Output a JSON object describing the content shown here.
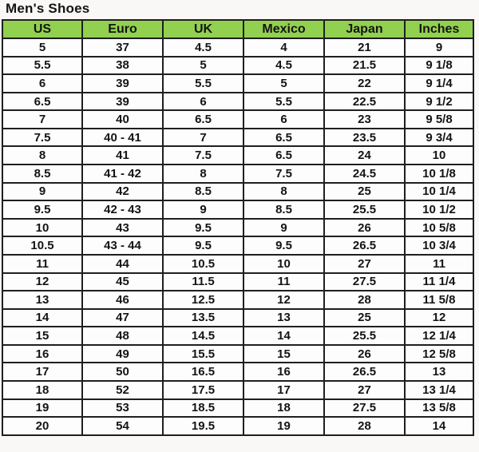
{
  "chart_data": {
    "type": "table",
    "title": "Men's Shoes",
    "columns": [
      "US",
      "Euro",
      "UK",
      "Mexico",
      "Japan",
      "Inches"
    ],
    "rows": [
      [
        "5",
        "37",
        "4.5",
        "4",
        "21",
        "9"
      ],
      [
        "5.5",
        "38",
        "5",
        "4.5",
        "21.5",
        "9 1/8"
      ],
      [
        "6",
        "39",
        "5.5",
        "5",
        "22",
        "9 1/4"
      ],
      [
        "6.5",
        "39",
        "6",
        "5.5",
        "22.5",
        "9 1/2"
      ],
      [
        "7",
        "40",
        "6.5",
        "6",
        "23",
        "9 5/8"
      ],
      [
        "7.5",
        "40 - 41",
        "7",
        "6.5",
        "23.5",
        "9 3/4"
      ],
      [
        "8",
        "41",
        "7.5",
        "6.5",
        "24",
        "10"
      ],
      [
        "8.5",
        "41 - 42",
        "8",
        "7.5",
        "24.5",
        "10 1/8"
      ],
      [
        "9",
        "42",
        "8.5",
        "8",
        "25",
        "10 1/4"
      ],
      [
        "9.5",
        "42 - 43",
        "9",
        "8.5",
        "25.5",
        "10 1/2"
      ],
      [
        "10",
        "43",
        "9.5",
        "9",
        "26",
        "10 5/8"
      ],
      [
        "10.5",
        "43 - 44",
        "9.5",
        "9.5",
        "26.5",
        "10 3/4"
      ],
      [
        "11",
        "44",
        "10.5",
        "10",
        "27",
        "11"
      ],
      [
        "12",
        "45",
        "11.5",
        "11",
        "27.5",
        "11 1/4"
      ],
      [
        "13",
        "46",
        "12.5",
        "12",
        "28",
        "11 5/8"
      ],
      [
        "14",
        "47",
        "13.5",
        "13",
        "25",
        "12"
      ],
      [
        "15",
        "48",
        "14.5",
        "14",
        "25.5",
        "12 1/4"
      ],
      [
        "16",
        "49",
        "15.5",
        "15",
        "26",
        "12 5/8"
      ],
      [
        "17",
        "50",
        "16.5",
        "16",
        "26.5",
        "13"
      ],
      [
        "18",
        "52",
        "17.5",
        "17",
        "27",
        "13 1/4"
      ],
      [
        "19",
        "53",
        "18.5",
        "18",
        "27.5",
        "13 5/8"
      ],
      [
        "20",
        "54",
        "19.5",
        "19",
        "28",
        "14"
      ]
    ],
    "layout_hints": {
      "grid": "on",
      "header_position": "top",
      "cell_alignment": "center"
    }
  },
  "colors": {
    "header_bg": "#92D050",
    "border": "#1f1f1f",
    "cell_bg": "#fdfdfd",
    "page_bg": "#f9f8f6",
    "text": "#141414"
  }
}
